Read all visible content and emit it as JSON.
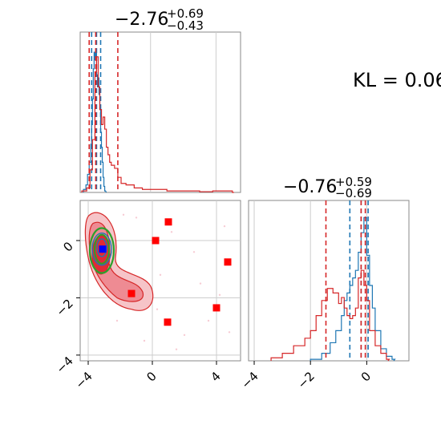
{
  "chart_data": [
    {
      "type": "histogram",
      "panel": "marginal-x",
      "title": {
        "main": "−2.76",
        "sup": "+0.69",
        "sub": "−0.43"
      },
      "xlim": [
        -4.3,
        5.5
      ],
      "grid": true,
      "vlines_gridlines": [
        0,
        4
      ],
      "series": [
        {
          "name": "",
          "color": "#1f77b4",
          "x": [
            -4.1,
            -3.95,
            -3.85,
            -3.75,
            -3.65,
            -3.6,
            -3.55,
            -3.5,
            -3.45,
            -3.4,
            -3.35,
            -3.3,
            -3.25,
            -3.2,
            -3.15,
            -3.1,
            -3.05,
            -3.0,
            -2.95,
            -2.9,
            -2.85,
            -2.8
          ],
          "y": [
            0.02,
            0.05,
            0.12,
            0.2,
            0.32,
            0.45,
            0.62,
            0.82,
            0.93,
            0.88,
            0.95,
            0.78,
            0.7,
            0.76,
            0.65,
            0.55,
            0.4,
            0.3,
            0.2,
            0.1,
            0.04,
            0.01
          ],
          "quantiles": [
            -3.6,
            -3.3,
            -3.05
          ]
        },
        {
          "name": "",
          "color": "#d62728",
          "x": [
            -4.2,
            -3.9,
            -3.7,
            -3.55,
            -3.4,
            -3.3,
            -3.2,
            -3.1,
            -3.0,
            -2.9,
            -2.8,
            -2.7,
            -2.6,
            -2.5,
            -2.4,
            -2.2,
            -2.0,
            -1.8,
            -1.5,
            -1.0,
            -0.5,
            0,
            1,
            2,
            3,
            3.8,
            4.2,
            5
          ],
          "y": [
            0.01,
            0.03,
            0.15,
            0.35,
            0.8,
            0.9,
            0.7,
            0.55,
            0.45,
            0.5,
            0.42,
            0.3,
            0.25,
            0.2,
            0.18,
            0.16,
            0.1,
            0.06,
            0.05,
            0.03,
            0.02,
            0.02,
            0.01,
            0.01,
            0.005,
            0.01,
            0.01,
            0.0
          ],
          "quantiles": [
            -3.75,
            -3.35,
            -2.0
          ]
        }
      ]
    },
    {
      "type": "histogram",
      "panel": "marginal-y",
      "title": {
        "main": "−0.76",
        "sup": "+0.59",
        "sub": "−0.69"
      },
      "xlim": [
        -4.2,
        1.5
      ],
      "xticks": [
        "−4",
        "−2",
        "0"
      ],
      "grid": true,
      "series": [
        {
          "name": "",
          "color": "#1f77b4",
          "x": [
            -2.0,
            -1.6,
            -1.3,
            -1.1,
            -0.9,
            -0.8,
            -0.7,
            -0.6,
            -0.5,
            -0.4,
            -0.3,
            -0.2,
            -0.1,
            0.0,
            0.1,
            0.2,
            0.3,
            0.5,
            0.7,
            0.9
          ],
          "y": [
            0.01,
            0.05,
            0.12,
            0.2,
            0.3,
            0.4,
            0.45,
            0.5,
            0.55,
            0.6,
            0.72,
            0.85,
            0.95,
            0.7,
            0.5,
            0.35,
            0.2,
            0.08,
            0.03,
            0.01
          ],
          "quantiles": [
            -0.6,
            -0.2,
            0.05
          ]
        },
        {
          "name": "",
          "color": "#d62728",
          "x": [
            -3.4,
            -3.0,
            -2.6,
            -2.2,
            -2.0,
            -1.8,
            -1.6,
            -1.4,
            -1.2,
            -1.0,
            -0.9,
            -0.8,
            -0.7,
            -0.6,
            -0.5,
            -0.4,
            -0.3,
            -0.2,
            -0.1,
            0.0,
            0.1,
            0.3,
            0.5,
            0.7
          ],
          "y": [
            0.02,
            0.05,
            0.1,
            0.15,
            0.2,
            0.3,
            0.4,
            0.48,
            0.45,
            0.38,
            0.42,
            0.35,
            0.3,
            0.28,
            0.3,
            0.35,
            0.55,
            0.6,
            0.5,
            0.4,
            0.2,
            0.1,
            0.05,
            0.01
          ],
          "quantiles": [
            -1.45,
            -0.2,
            -0.05
          ]
        }
      ]
    },
    {
      "type": "scatter",
      "panel": "joint",
      "xlim": [
        -4.5,
        5.5
      ],
      "ylim": [
        -4.2,
        1.4
      ],
      "xticks": [
        "−4",
        "0",
        "4"
      ],
      "yticks": [
        "−4",
        "−2",
        "0"
      ],
      "grid": true,
      "red_markers": [
        {
          "x": 1.0,
          "y": 0.65
        },
        {
          "x": 0.2,
          "y": 0.0
        },
        {
          "x": 4.7,
          "y": -0.75
        },
        {
          "x": -1.3,
          "y": -1.85
        },
        {
          "x": 4.0,
          "y": -2.35
        },
        {
          "x": 0.95,
          "y": -2.85
        }
      ],
      "blue_marker": {
        "x": -3.1,
        "y": -0.3
      },
      "contour_colors": {
        "red": "#d62728",
        "green": "#2ca02c",
        "blue": "#1f77b4"
      }
    }
  ],
  "annotation": "KL = 0.06"
}
